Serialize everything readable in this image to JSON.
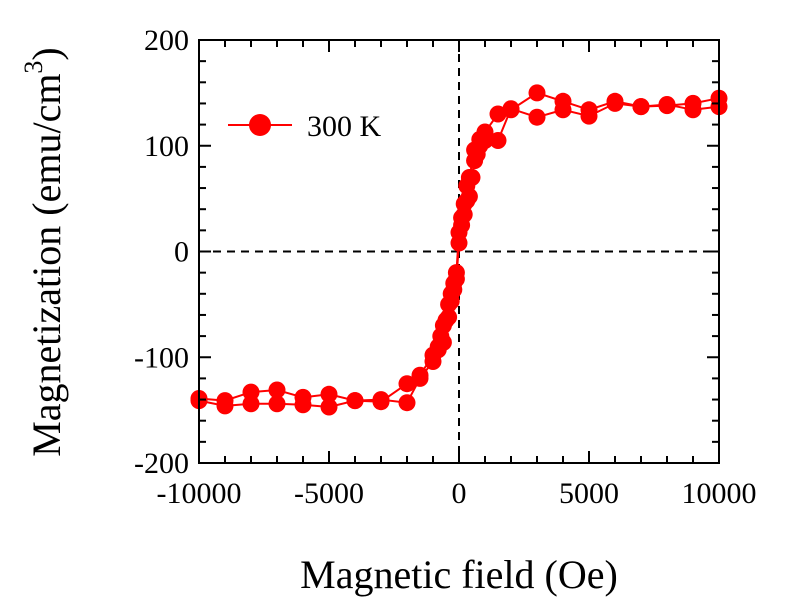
{
  "chart_data": {
    "type": "line",
    "xlabel": "Magnetic field (Oe)",
    "ylabel": "Magnetization (emu/cm",
    "ylabel_superscript": "3",
    "ylabel_close": ")",
    "xlim": [
      -10000,
      10000
    ],
    "ylim": [
      -200,
      200
    ],
    "x_ticks": [
      -10000,
      -5000,
      0,
      5000,
      10000
    ],
    "x_tick_labels": [
      "-10000",
      "-5000",
      "0",
      "5000",
      "10000"
    ],
    "y_ticks": [
      -200,
      -100,
      0,
      100,
      200
    ],
    "y_tick_labels": [
      "-200",
      "-100",
      "0",
      "100",
      "200"
    ],
    "zero_lines": "dashed",
    "grid": false,
    "legend_position": "top-left",
    "color": "#ff0000",
    "series": [
      {
        "name": "300 K",
        "x": [
          10000,
          9000,
          8000,
          7000,
          6000,
          5000,
          4000,
          3000,
          2000,
          1500,
          1000,
          800,
          600,
          400,
          300,
          200,
          100,
          0,
          -100,
          -200,
          -300,
          -400,
          -500,
          -600,
          -700,
          -800,
          -1000,
          -1500,
          -2000,
          -3000,
          -4000,
          -5000,
          -6000,
          -7000,
          -8000,
          -9000,
          -10000
        ],
        "y": [
          145,
          140,
          138,
          137,
          142,
          134,
          142,
          150,
          134,
          130,
          113,
          106,
          96,
          70,
          62,
          45,
          32,
          18,
          -20,
          -30,
          -40,
          -50,
          -65,
          -70,
          -80,
          -90,
          -98,
          -117,
          -125,
          -142,
          -141,
          -135,
          -138,
          -131,
          -133,
          -141,
          -139
        ]
      },
      {
        "name": "",
        "x": [
          -10000,
          -9000,
          -8000,
          -7000,
          -6000,
          -5000,
          -4000,
          -3000,
          -2000,
          -1500,
          -1000,
          -800,
          -600,
          -400,
          -300,
          -200,
          -100,
          0,
          100,
          200,
          300,
          400,
          500,
          600,
          700,
          800,
          1000,
          1500,
          2000,
          3000,
          4000,
          5000,
          6000,
          7000,
          8000,
          9000,
          10000
        ],
        "y": [
          -141,
          -146,
          -144,
          -144,
          -145,
          -147,
          -141,
          -140,
          -143,
          -120,
          -104,
          -93,
          -86,
          -62,
          -47,
          -36,
          -26,
          8,
          25,
          35,
          48,
          52,
          70,
          86,
          92,
          100,
          105,
          105,
          135,
          127,
          134,
          128,
          140,
          137,
          139,
          134,
          137
        ]
      }
    ]
  }
}
